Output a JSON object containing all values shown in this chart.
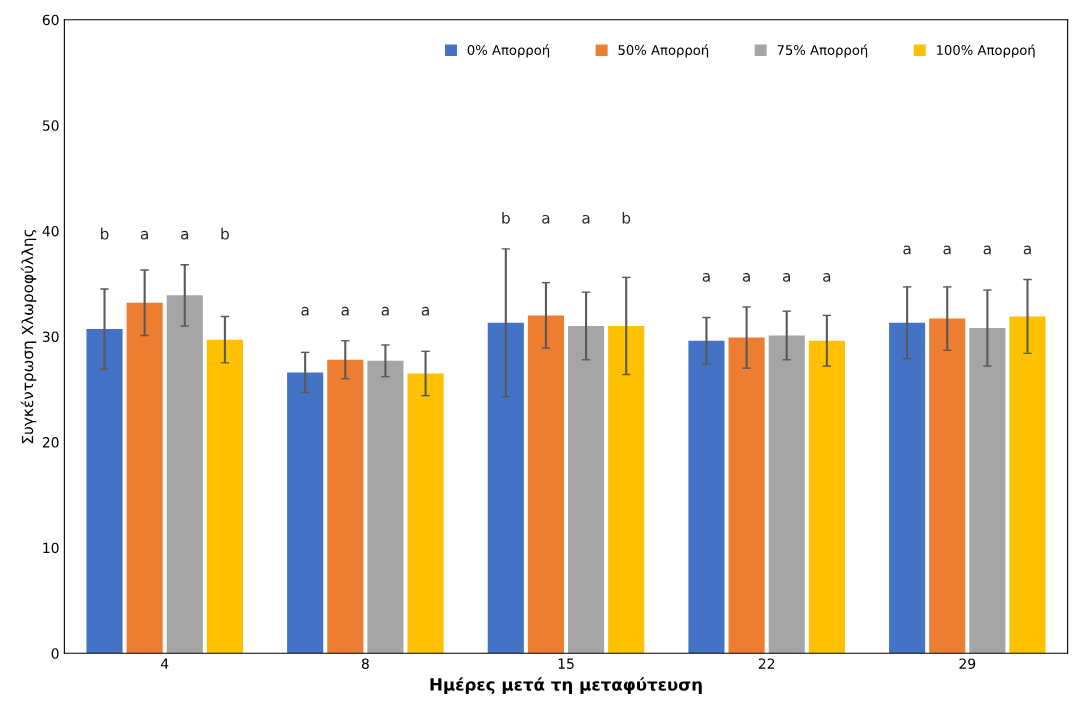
{
  "chart_data": {
    "type": "bar",
    "xlabel": "Ημέρες μετά τη μεταφύτευση",
    "ylabel": "Συγκέντρωση Χλωροφύλλης",
    "categories": [
      "4",
      "8",
      "15",
      "22",
      "29"
    ],
    "series": [
      {
        "name": "0% Απορροή",
        "color": "#4472c4",
        "values": [
          30.7,
          26.6,
          31.3,
          29.6,
          31.3
        ],
        "errors": [
          3.8,
          1.9,
          7.0,
          2.2,
          3.4
        ]
      },
      {
        "name": "50% Απορροή",
        "color": "#ed7d31",
        "values": [
          33.2,
          27.8,
          32.0,
          29.9,
          31.7
        ],
        "errors": [
          3.1,
          1.8,
          3.1,
          2.9,
          3.0
        ]
      },
      {
        "name": "75% Απορροή",
        "color": "#a5a5a5",
        "values": [
          33.9,
          27.7,
          31.0,
          30.1,
          30.8
        ],
        "errors": [
          2.9,
          1.5,
          3.2,
          2.3,
          3.6
        ]
      },
      {
        "name": "100% Απορροή",
        "color": "#ffc000",
        "values": [
          29.7,
          26.5,
          31.0,
          29.6,
          31.9
        ],
        "errors": [
          2.2,
          2.1,
          4.6,
          2.4,
          3.5
        ]
      }
    ],
    "annotations": [
      "b",
      "a",
      "a",
      "b",
      "a",
      "a",
      "a",
      "a",
      "b",
      "a",
      "a",
      "b",
      "a",
      "a",
      "a",
      "a",
      "a",
      "a",
      "a",
      "a"
    ],
    "ylim": [
      0,
      60
    ],
    "yticks": [
      0,
      10,
      20,
      30,
      40,
      50,
      60
    ],
    "grid": false,
    "legend": "top right"
  }
}
